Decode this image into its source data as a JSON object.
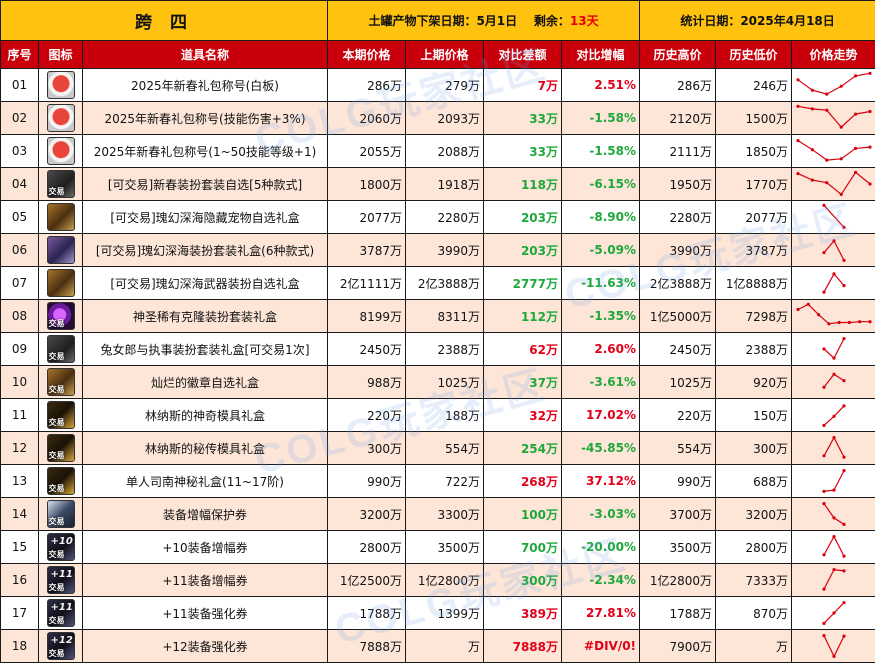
{
  "header": {
    "region": "跨 四",
    "stock_label": "土罐产物下架日期：",
    "stock_date": "5月1日",
    "remain_label": "剩余：",
    "remain_value": "13天",
    "stat_label": "统计日期：",
    "stat_date": "2025年4月18日"
  },
  "columns": [
    "序号",
    "图标",
    "道具名称",
    "本期价格",
    "上期价格",
    "对比差额",
    "对比增幅",
    "历史高价",
    "历史低价",
    "价格走势"
  ],
  "watermark": "COLG玩家社区",
  "colors": {
    "header_bg": "#ffc20e",
    "column_bg": "#c9000b",
    "row_alt": "#fde6d8",
    "up": "#e0001a",
    "down": "#1ea83c",
    "trend": "#d8000c"
  },
  "rows": [
    {
      "idx": "01",
      "icon": "new-year-gift-icon",
      "icon_class": "ico-gift",
      "tag": "",
      "name": "2025年新春礼包称号(白板)",
      "cur": "286万",
      "prev": "279万",
      "diff": "7万",
      "pct": "2.51%",
      "dir": "up",
      "high": "286万",
      "low": "246万",
      "trend": [
        0.7,
        0.3,
        0.15,
        0.45,
        0.85,
        0.95
      ]
    },
    {
      "idx": "02",
      "icon": "new-year-gift-icon",
      "icon_class": "ico-gift",
      "tag": "",
      "name": "2025年新春礼包称号(技能伤害+3%)",
      "cur": "2060万",
      "prev": "2093万",
      "diff": "33万",
      "pct": "-1.58%",
      "dir": "down",
      "high": "2120万",
      "low": "1500万",
      "trend": [
        0.95,
        0.85,
        0.8,
        0.15,
        0.65,
        0.75
      ]
    },
    {
      "idx": "03",
      "icon": "new-year-gift-icon",
      "icon_class": "ico-gift",
      "tag": "",
      "name": "2025年新春礼包称号(1~50技能等级+1)",
      "cur": "2055万",
      "prev": "2088万",
      "diff": "33万",
      "pct": "-1.58%",
      "dir": "down",
      "high": "2111万",
      "low": "1850万",
      "trend": [
        0.9,
        0.55,
        0.15,
        0.2,
        0.6,
        0.65
      ]
    },
    {
      "idx": "04",
      "icon": "costume-box-icon",
      "icon_class": "ico-dark",
      "tag": "交易",
      "name": "[可交易]新春装扮套装自选[5种款式]",
      "cur": "1800万",
      "prev": "1918万",
      "diff": "118万",
      "pct": "-6.15%",
      "dir": "down",
      "high": "1950万",
      "low": "1770万",
      "trend": [
        0.9,
        0.65,
        0.55,
        0.1,
        0.95,
        0.5
      ]
    },
    {
      "idx": "05",
      "icon": "treasure-chest-icon",
      "icon_class": "ico-gold",
      "tag": "",
      "name": "[可交易]瑰幻深海隐藏宠物自选礼盒",
      "cur": "2077万",
      "prev": "2280万",
      "diff": "203万",
      "pct": "-8.90%",
      "dir": "down",
      "high": "2280万",
      "low": "2077万",
      "trend": [
        0.95,
        0.1
      ]
    },
    {
      "idx": "06",
      "icon": "costume-chest-icon",
      "icon_class": "ico-box",
      "tag": "",
      "name": "[可交易]瑰幻深海装扮套装礼盒(6种款式)",
      "cur": "3787万",
      "prev": "3990万",
      "diff": "203万",
      "pct": "-5.09%",
      "dir": "down",
      "high": "3990万",
      "low": "3787万",
      "trend": [
        0.4,
        0.85,
        0.1
      ]
    },
    {
      "idx": "07",
      "icon": "weapon-chest-icon",
      "icon_class": "ico-gold",
      "tag": "",
      "name": "[可交易]瑰幻深海武器装扮自选礼盒",
      "cur": "2亿1111万",
      "prev": "2亿3888万",
      "diff": "2777万",
      "pct": "-11.63%",
      "dir": "down",
      "high": "2亿3888万",
      "low": "1亿8888万",
      "trend": [
        0.15,
        0.85,
        0.4
      ]
    },
    {
      "idx": "08",
      "icon": "clone-costume-icon",
      "icon_class": "ico-purple",
      "tag": "交易",
      "name": "神圣稀有克隆装扮套装礼盒",
      "cur": "8199万",
      "prev": "8311万",
      "diff": "112万",
      "pct": "-1.35%",
      "dir": "down",
      "high": "1亿5000万",
      "low": "7298万",
      "trend": [
        0.75,
        0.95,
        0.55,
        0.2,
        0.25,
        0.25,
        0.28,
        0.28
      ]
    },
    {
      "idx": "09",
      "icon": "costume-pack-icon",
      "icon_class": "ico-dark",
      "tag": "交易",
      "name": "兔女郎与执事装扮套装礼盒[可交易1次]",
      "cur": "2450万",
      "prev": "2388万",
      "diff": "62万",
      "pct": "2.60%",
      "dir": "up",
      "high": "2450万",
      "low": "2388万",
      "trend": [
        0.5,
        0.15,
        0.9
      ]
    },
    {
      "idx": "10",
      "icon": "emblem-box-icon",
      "icon_class": "ico-gold",
      "tag": "交易",
      "name": "灿烂的徽章自选礼盒",
      "cur": "988万",
      "prev": "1025万",
      "diff": "37万",
      "pct": "-3.61%",
      "dir": "down",
      "high": "1025万",
      "low": "920万",
      "trend": [
        0.3,
        0.8,
        0.55
      ]
    },
    {
      "idx": "11",
      "icon": "mold-box-icon",
      "icon_class": "ico-key",
      "tag": "交易",
      "name": "林纳斯的神奇模具礼盒",
      "cur": "220万",
      "prev": "188万",
      "diff": "32万",
      "pct": "17.02%",
      "dir": "up",
      "high": "220万",
      "low": "150万",
      "trend": [
        0.1,
        0.45,
        0.85
      ]
    },
    {
      "idx": "12",
      "icon": "mold-box-icon",
      "icon_class": "ico-key",
      "tag": "交易",
      "name": "林纳斯的秘传模具礼盒",
      "cur": "300万",
      "prev": "554万",
      "diff": "254万",
      "pct": "-45.85%",
      "dir": "down",
      "high": "554万",
      "low": "300万",
      "trend": [
        0.2,
        0.9,
        0.15
      ]
    },
    {
      "idx": "13",
      "icon": "key-gift-icon",
      "icon_class": "ico-key",
      "tag": "交易",
      "name": "单人司南神秘礼盒(11~17阶)",
      "cur": "990万",
      "prev": "722万",
      "diff": "268万",
      "pct": "37.12%",
      "dir": "up",
      "high": "990万",
      "low": "688万",
      "trend": [
        0.1,
        0.15,
        0.9
      ]
    },
    {
      "idx": "14",
      "icon": "protect-scroll-icon",
      "icon_class": "ico-scroll",
      "tag": "交易",
      "name": "装备增幅保护券",
      "cur": "3200万",
      "prev": "3300万",
      "diff": "100万",
      "pct": "-3.03%",
      "dir": "down",
      "high": "3700万",
      "low": "3200万",
      "trend": [
        0.9,
        0.35,
        0.1
      ]
    },
    {
      "idx": "15",
      "icon": "amplify-ticket-icon",
      "icon_class": "ico-plus",
      "tag": "交易",
      "lvl": "+10",
      "name": "+10装备增幅券",
      "cur": "2800万",
      "prev": "3500万",
      "diff": "700万",
      "pct": "-20.00%",
      "dir": "down",
      "high": "3500万",
      "low": "2800万",
      "trend": [
        0.2,
        0.9,
        0.15
      ]
    },
    {
      "idx": "16",
      "icon": "amplify-ticket-icon",
      "icon_class": "ico-plus",
      "tag": "交易",
      "lvl": "+11",
      "name": "+11装备增幅券",
      "cur": "1亿2500万",
      "prev": "1亿2800万",
      "diff": "300万",
      "pct": "-2.34%",
      "dir": "down",
      "high": "1亿2800万",
      "low": "7333万",
      "trend": [
        0.15,
        0.9,
        0.85
      ]
    },
    {
      "idx": "17",
      "icon": "reinforce-ticket-icon",
      "icon_class": "ico-plus",
      "tag": "交易",
      "lvl": "+11",
      "name": "+11装备强化券",
      "cur": "1788万",
      "prev": "1399万",
      "diff": "389万",
      "pct": "27.81%",
      "dir": "up",
      "high": "1788万",
      "low": "870万",
      "trend": [
        0.1,
        0.5,
        0.9
      ]
    },
    {
      "idx": "18",
      "icon": "reinforce-ticket-icon",
      "icon_class": "ico-plus",
      "tag": "交易",
      "lvl": "+12",
      "name": "+12装备强化券",
      "cur": "7888万",
      "prev": "万",
      "diff": "7888万",
      "pct": "#DIV/0!",
      "dir": "up",
      "high": "7900万",
      "low": "万",
      "trend": [
        0.9,
        0.1,
        0.88
      ]
    }
  ]
}
